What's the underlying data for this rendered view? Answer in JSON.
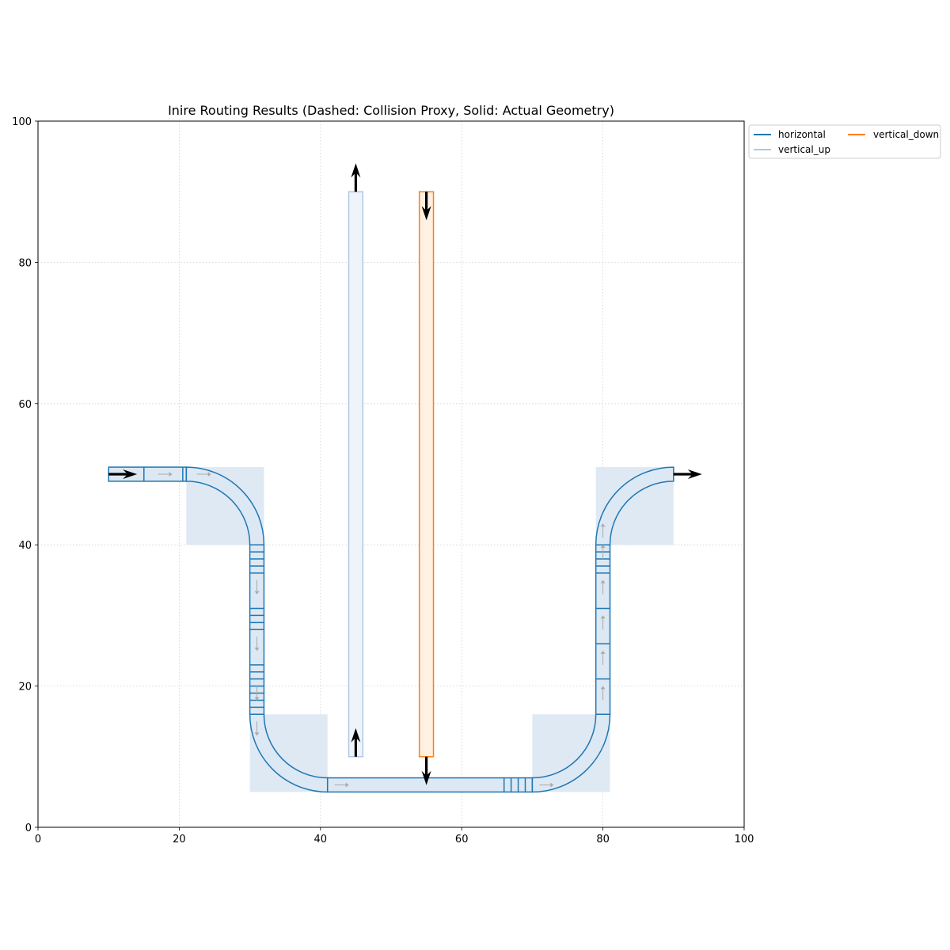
{
  "chart_data": {
    "type": "line",
    "title": "Inire Routing Results (Dashed: Collision Proxy, Solid: Actual Geometry)",
    "xlabel": "",
    "ylabel": "",
    "xlim": [
      0,
      100
    ],
    "ylim": [
      0,
      100
    ],
    "xticks": [
      "0",
      "20",
      "40",
      "60",
      "80",
      "100"
    ],
    "yticks": [
      "0",
      "20",
      "40",
      "60",
      "80",
      "100"
    ],
    "grid": true,
    "legend": {
      "placement": "outside-top-right",
      "columns": 2,
      "entries": [
        "horizontal",
        "vertical_down",
        "vertical_up"
      ]
    },
    "colors": {
      "horizontal": "#1f77b4",
      "vertical_up": "#aec7e8",
      "vertical_down": "#ff7f0e",
      "proxy_fill": "#dce8f3"
    },
    "series": [
      {
        "name": "horizontal",
        "waveguide_width": 2,
        "path": [
          {
            "type": "straight",
            "from": [
              10,
              50
            ],
            "to": [
              21,
              50
            ]
          },
          {
            "type": "bend",
            "center": [
              21,
              40
            ],
            "radius": 10,
            "from_deg": 90,
            "to_deg": 0
          },
          {
            "type": "straight",
            "from": [
              31,
              40
            ],
            "to": [
              31,
              16
            ]
          },
          {
            "type": "bend",
            "center": [
              41,
              16
            ],
            "radius": 10,
            "from_deg": 180,
            "to_deg": 270
          },
          {
            "type": "straight",
            "from": [
              41,
              6
            ],
            "to": [
              70,
              6
            ]
          },
          {
            "type": "bend",
            "center": [
              70,
              16
            ],
            "radius": 10,
            "from_deg": 270,
            "to_deg": 360
          },
          {
            "type": "straight",
            "from": [
              80,
              16
            ],
            "to": [
              80,
              40
            ]
          },
          {
            "type": "bend",
            "center": [
              90,
              40
            ],
            "radius": 10,
            "from_deg": 180,
            "to_deg": 90
          }
        ],
        "segment_breaks": [
          {
            "orient": "v",
            "at": [
              15,
              50
            ]
          },
          {
            "orient": "v",
            "at": [
              20.5,
              50
            ]
          },
          {
            "orient": "v",
            "at": [
              21,
              50
            ]
          },
          {
            "orient": "h",
            "at": [
              31,
              39
            ]
          },
          {
            "orient": "h",
            "at": [
              31,
              38
            ]
          },
          {
            "orient": "h",
            "at": [
              31,
              37
            ]
          },
          {
            "orient": "h",
            "at": [
              31,
              36
            ]
          },
          {
            "orient": "h",
            "at": [
              31,
              31
            ]
          },
          {
            "orient": "h",
            "at": [
              31,
              30
            ]
          },
          {
            "orient": "h",
            "at": [
              31,
              29
            ]
          },
          {
            "orient": "h",
            "at": [
              31,
              28
            ]
          },
          {
            "orient": "h",
            "at": [
              31,
              23
            ]
          },
          {
            "orient": "h",
            "at": [
              31,
              22
            ]
          },
          {
            "orient": "h",
            "at": [
              31,
              21
            ]
          },
          {
            "orient": "h",
            "at": [
              31,
              20
            ]
          },
          {
            "orient": "h",
            "at": [
              31,
              19
            ]
          },
          {
            "orient": "h",
            "at": [
              31,
              18
            ]
          },
          {
            "orient": "h",
            "at": [
              31,
              17
            ]
          },
          {
            "orient": "v",
            "at": [
              66,
              6
            ]
          },
          {
            "orient": "v",
            "at": [
              67,
              6
            ]
          },
          {
            "orient": "v",
            "at": [
              68,
              6
            ]
          },
          {
            "orient": "v",
            "at": [
              69,
              6
            ]
          },
          {
            "orient": "h",
            "at": [
              80,
              16
            ]
          },
          {
            "orient": "h",
            "at": [
              80,
              21
            ]
          },
          {
            "orient": "h",
            "at": [
              80,
              26
            ]
          },
          {
            "orient": "h",
            "at": [
              80,
              31
            ]
          },
          {
            "orient": "h",
            "at": [
              80,
              36
            ]
          },
          {
            "orient": "h",
            "at": [
              80,
              37
            ]
          },
          {
            "orient": "h",
            "at": [
              80,
              38
            ]
          },
          {
            "orient": "h",
            "at": [
              80,
              39
            ]
          }
        ],
        "proxies": [
          {
            "x0": 21,
            "y0": 40,
            "x1": 32,
            "y1": 51
          },
          {
            "x0": 30,
            "y0": 5,
            "x1": 41,
            "y1": 16
          },
          {
            "x0": 70,
            "y0": 5,
            "x1": 81,
            "y1": 16
          },
          {
            "x0": 79,
            "y0": 40,
            "x1": 90,
            "y1": 51
          }
        ],
        "flow_arrows": [
          {
            "at": [
              17,
              50
            ],
            "dir": "right"
          },
          {
            "at": [
              22.5,
              50
            ],
            "dir": "right"
          },
          {
            "at": [
              31,
              35
            ],
            "dir": "down"
          },
          {
            "at": [
              31,
              27
            ],
            "dir": "down"
          },
          {
            "at": [
              31,
              20
            ],
            "dir": "down"
          },
          {
            "at": [
              31,
              15
            ],
            "dir": "down"
          },
          {
            "at": [
              42,
              6
            ],
            "dir": "right"
          },
          {
            "at": [
              71,
              6
            ],
            "dir": "right"
          },
          {
            "at": [
              80,
              18
            ],
            "dir": "up"
          },
          {
            "at": [
              80,
              23
            ],
            "dir": "up"
          },
          {
            "at": [
              80,
              28
            ],
            "dir": "up"
          },
          {
            "at": [
              80,
              33
            ],
            "dir": "up"
          },
          {
            "at": [
              80,
              38
            ],
            "dir": "up"
          },
          {
            "at": [
              80,
              41
            ],
            "dir": "up"
          }
        ],
        "port_arrows": [
          {
            "at": [
              10,
              50
            ],
            "dir": "right"
          },
          {
            "at": [
              90,
              50
            ],
            "dir": "right"
          }
        ]
      },
      {
        "name": "vertical_up",
        "waveguide_width": 2,
        "path": [
          {
            "type": "straight",
            "from": [
              45,
              10
            ],
            "to": [
              45,
              90
            ]
          }
        ],
        "port_arrows": [
          {
            "at": [
              45,
              10
            ],
            "dir": "up"
          },
          {
            "at": [
              45,
              90
            ],
            "dir": "up"
          }
        ]
      },
      {
        "name": "vertical_down",
        "waveguide_width": 2,
        "path": [
          {
            "type": "straight",
            "from": [
              55,
              90
            ],
            "to": [
              55,
              10
            ]
          }
        ],
        "port_arrows": [
          {
            "at": [
              55,
              90
            ],
            "dir": "down"
          },
          {
            "at": [
              55,
              10
            ],
            "dir": "down"
          }
        ]
      }
    ]
  }
}
